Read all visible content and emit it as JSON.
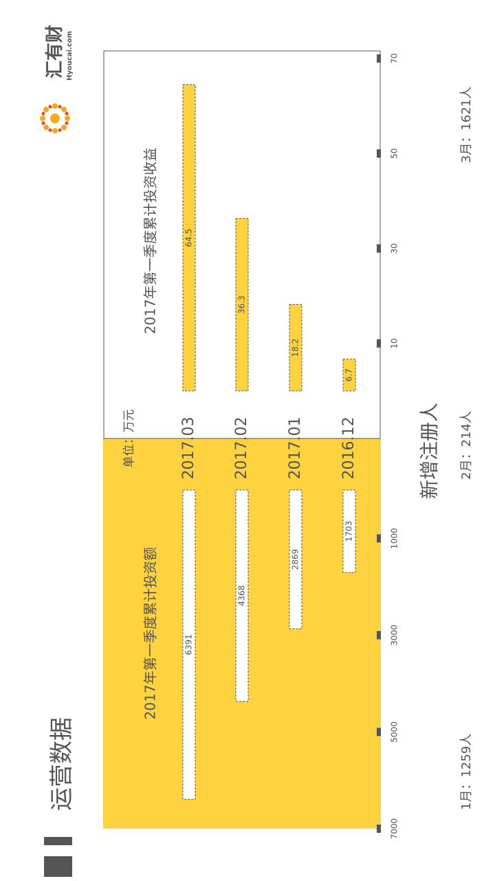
{
  "header": {
    "title": "运营数据",
    "logo_text": "汇有财",
    "logo_domain": "Hyoucai.com"
  },
  "accent_color": "#FFD23F",
  "chart_data": [
    {
      "type": "bar",
      "orientation": "horizontal",
      "title": "2017年第一季度累计投资额",
      "categories": [
        "2017.03",
        "2017.02",
        "2017.01",
        "2016.12"
      ],
      "values": [
        6391,
        4368,
        2869,
        1703
      ],
      "axis_ticks": [
        "1000",
        "3000",
        "5000",
        "7000"
      ],
      "ylim": [
        0,
        7000
      ]
    },
    {
      "type": "bar",
      "orientation": "horizontal",
      "title": "2017年第一季度累计投资收益",
      "unit": "单位：万元",
      "categories": [
        "2017.03",
        "2017.02",
        "2017.01",
        "2016.12"
      ],
      "values": [
        64.5,
        36.3,
        18.2,
        6.7
      ],
      "axis_ticks": [
        "10",
        "30",
        "50",
        "70"
      ],
      "ylim": [
        0,
        70
      ]
    }
  ],
  "registrations": {
    "title": "新增注册人",
    "items": [
      "1月：1259人",
      "2月：214人",
      "3月：1621人"
    ]
  }
}
